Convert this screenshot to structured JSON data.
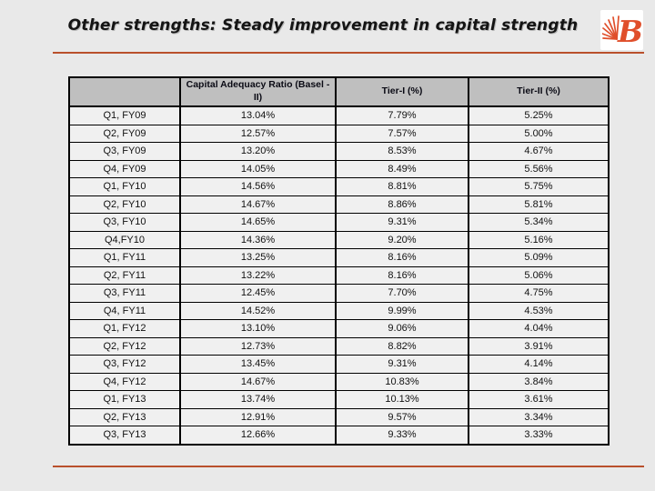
{
  "slide": {
    "title": "Other strengths: Steady improvement in capital strength",
    "accent_color": "#b9502c",
    "background_color": "#e9e9e9",
    "logo": {
      "name": "bank-of-baroda-sun-logo",
      "color": "#e04f2b"
    }
  },
  "table": {
    "headers": [
      "",
      "Capital Adequacy Ratio (Basel -II)",
      "Tier-I (%)",
      "Tier-II (%)"
    ],
    "header_bg": "#bfbfbf",
    "row_bg": "#f0f0f0",
    "rows": [
      [
        "Q1, FY09",
        "13.04%",
        "7.79%",
        "5.25%"
      ],
      [
        "Q2, FY09",
        "12.57%",
        "7.57%",
        "5.00%"
      ],
      [
        "Q3, FY09",
        "13.20%",
        "8.53%",
        "4.67%"
      ],
      [
        "Q4, FY09",
        "14.05%",
        "8.49%",
        "5.56%"
      ],
      [
        "Q1, FY10",
        "14.56%",
        "8.81%",
        "5.75%"
      ],
      [
        "Q2, FY10",
        "14.67%",
        "8.86%",
        "5.81%"
      ],
      [
        "Q3, FY10",
        "14.65%",
        "9.31%",
        "5.34%"
      ],
      [
        "Q4,FY10",
        "14.36%",
        "9.20%",
        "5.16%"
      ],
      [
        "Q1, FY11",
        "13.25%",
        "8.16%",
        "5.09%"
      ],
      [
        "Q2, FY11",
        "13.22%",
        "8.16%",
        "5.06%"
      ],
      [
        "Q3, FY11",
        "12.45%",
        "7.70%",
        "4.75%"
      ],
      [
        "Q4, FY11",
        "14.52%",
        "9.99%",
        "4.53%"
      ],
      [
        "Q1, FY12",
        "13.10%",
        "9.06%",
        "4.04%"
      ],
      [
        "Q2, FY12",
        "12.73%",
        "8.82%",
        "3.91%"
      ],
      [
        "Q3, FY12",
        "13.45%",
        "9.31%",
        "4.14%"
      ],
      [
        "Q4, FY12",
        "14.67%",
        "10.83%",
        "3.84%"
      ],
      [
        "Q1, FY13",
        "13.74%",
        "10.13%",
        "3.61%"
      ],
      [
        "Q2, FY13",
        "12.91%",
        "9.57%",
        "3.34%"
      ],
      [
        "Q3, FY13",
        "12.66%",
        "9.33%",
        "3.33%"
      ]
    ]
  }
}
